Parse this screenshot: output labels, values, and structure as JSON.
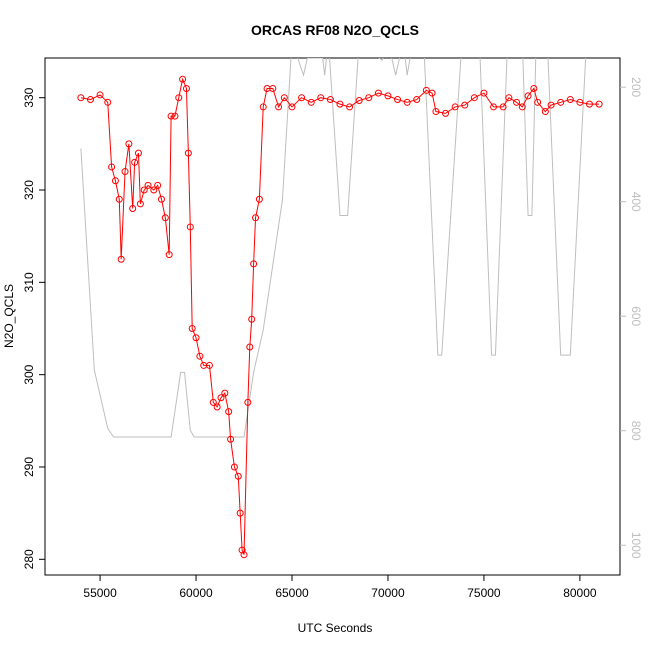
{
  "chart_data": {
    "type": "line",
    "title": "ORCAS RF08 N2O_QCLS",
    "xlabel": "UTC Seconds",
    "ylabel": "N2O_QCLS",
    "xlim": [
      52130,
      82090
    ],
    "ylim": [
      278.3,
      334.3
    ],
    "y2lim": [
      1052,
      149
    ],
    "y2_reversed": true,
    "xticks": [
      55000,
      60000,
      65000,
      70000,
      75000,
      80000
    ],
    "yticks": [
      280,
      290,
      300,
      310,
      320,
      330
    ],
    "y2ticks": [
      200,
      400,
      600,
      800,
      1000
    ],
    "series": [
      {
        "color": "#ff0000",
        "markers": true,
        "x": [
          54000,
          54500,
          55000,
          55400,
          55600,
          55800,
          56000,
          56100,
          56300,
          56500,
          56700,
          56800,
          57000,
          57100,
          57300,
          57500,
          57800,
          58000,
          58200,
          58400,
          58600,
          58700,
          58900,
          59100,
          59300,
          59500,
          59600,
          59700,
          59800,
          60000,
          60200,
          60400,
          60700,
          60900,
          61100,
          61300,
          61500,
          61700,
          61800,
          62000,
          62200,
          62300,
          62400,
          62500,
          62700,
          62800,
          62900,
          63000,
          63100,
          63300,
          63500,
          63700,
          64000,
          64300,
          64600,
          65000,
          65500,
          66000,
          66500,
          67000,
          67500,
          68000,
          68500,
          69000,
          69500,
          70000,
          70500,
          71000,
          71500,
          72000,
          72300,
          72500,
          73000,
          73500,
          74000,
          74500,
          75000,
          75500,
          76000,
          76300,
          76700,
          77000,
          77300,
          77600,
          77800,
          78200,
          78500,
          79000,
          79500,
          80000,
          80500,
          81000
        ],
        "values": [
          330,
          329.8,
          330.3,
          329.5,
          322.5,
          321,
          319,
          312.5,
          322,
          325,
          318,
          323,
          324,
          318.5,
          320,
          320.5,
          320,
          320.5,
          319,
          317,
          313,
          328,
          328,
          330,
          332,
          331,
          324,
          316,
          305,
          304,
          302,
          301,
          301,
          297,
          296.5,
          297.5,
          298,
          296,
          293,
          290,
          289,
          285,
          281,
          280.5,
          297,
          303,
          306,
          312,
          317,
          319,
          329,
          331,
          331,
          329,
          330,
          329,
          330,
          329.5,
          330,
          329.8,
          329.3,
          329,
          329.7,
          330,
          330.5,
          330.2,
          329.8,
          329.5,
          329.8,
          330.8,
          330.5,
          328.5,
          328.3,
          329,
          329.2,
          330,
          330.5,
          329,
          329,
          330,
          329.5,
          329,
          330.2,
          331,
          329.5,
          328.5,
          329.2,
          329.5,
          329.8,
          329.5,
          329.3,
          329.3
        ]
      },
      {
        "color": "#bebebe",
        "axis": "y2",
        "x": [
          54000,
          54700,
          55400,
          55700,
          58700,
          59200,
          59400,
          59700,
          59900,
          62500,
          63000,
          63500,
          64500,
          65000,
          65600,
          65800,
          66600,
          66700,
          66900,
          67500,
          67900,
          68500,
          69700,
          70000,
          70400,
          70800,
          71000,
          71300,
          71900,
          72600,
          72800,
          73800,
          74400,
          74800,
          75400,
          75600,
          76200,
          77000,
          77300,
          77500,
          77700,
          78300,
          79000,
          79300,
          79500,
          80300,
          80600
        ],
        "values": [
          307,
          694,
          796,
          811,
          811,
          698,
          698,
          799,
          811,
          811,
          698,
          624,
          397,
          120,
          179,
          149,
          149,
          179,
          120,
          424,
          424,
          120,
          153,
          120,
          179,
          120,
          179,
          120,
          149,
          668,
          668,
          149,
          120,
          149,
          668,
          668,
          149,
          120,
          424,
          424,
          149,
          120,
          668,
          668,
          668,
          149,
          120
        ]
      }
    ]
  }
}
